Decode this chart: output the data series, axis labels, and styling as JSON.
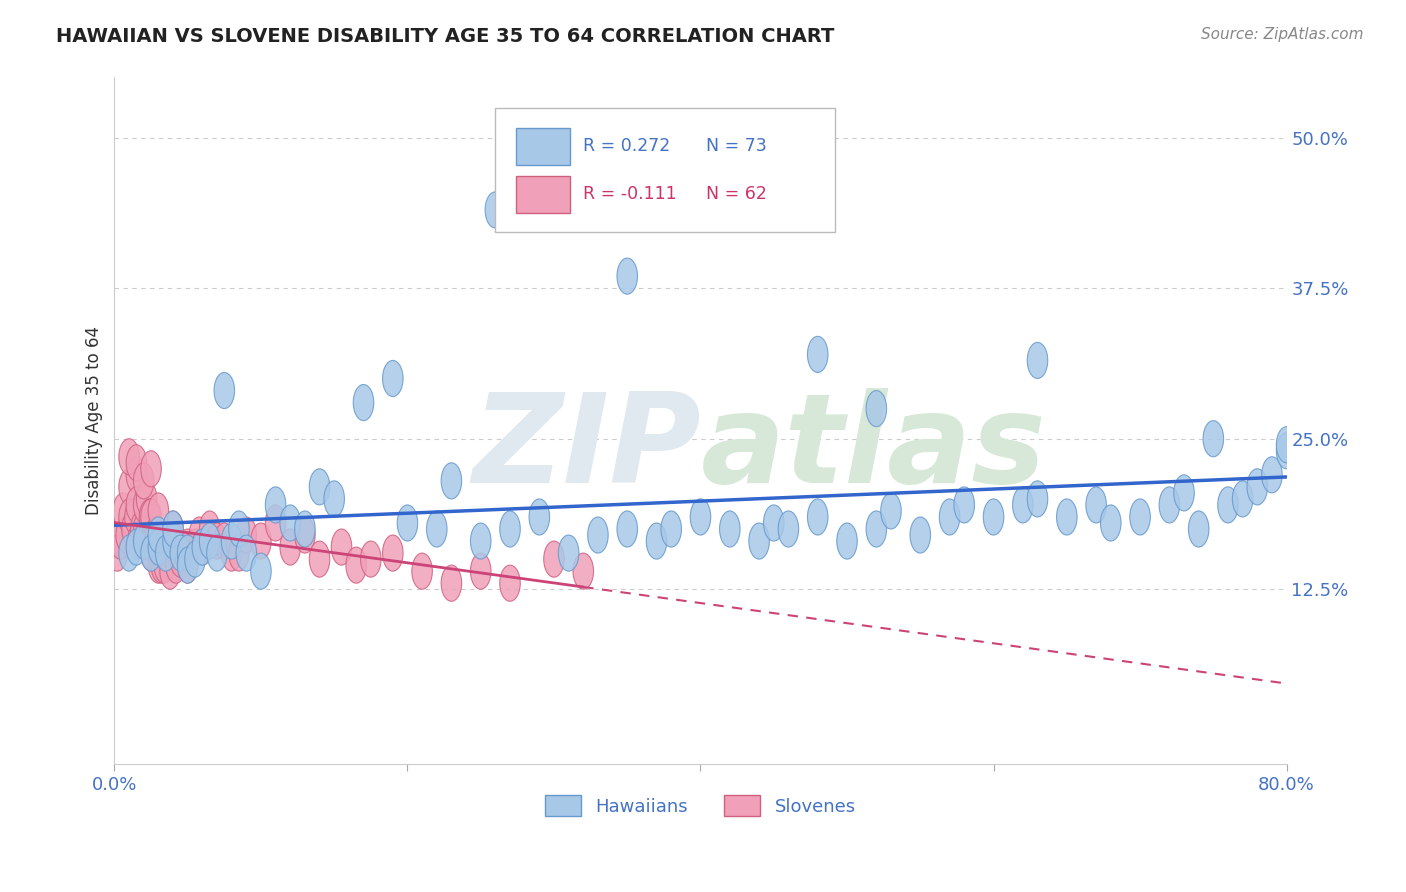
{
  "title": "HAWAIIAN VS SLOVENE DISABILITY AGE 35 TO 64 CORRELATION CHART",
  "source": "Source: ZipAtlas.com",
  "ylabel": "Disability Age 35 to 64",
  "xlim": [
    0.0,
    0.8
  ],
  "ylim": [
    -0.02,
    0.55
  ],
  "yticks": [
    0.125,
    0.25,
    0.375,
    0.5
  ],
  "ytick_labels": [
    "12.5%",
    "25.0%",
    "37.5%",
    "50.0%"
  ],
  "xticks": [
    0.0,
    0.2,
    0.4,
    0.6,
    0.8
  ],
  "xtick_labels": [
    "0.0%",
    "",
    "",
    "",
    "80.0%"
  ],
  "hawaiian_color": "#a8c8e8",
  "hawaiian_edge": "#6699cc",
  "slovene_color": "#f0a0b8",
  "slovene_edge": "#d06080",
  "trend_blue": "#3366cc",
  "trend_pink": "#cc4477",
  "R_hawaiian": 0.272,
  "N_hawaiian": 73,
  "R_slovene": -0.111,
  "N_slovene": 62,
  "hawaiian_x": [
    0.01,
    0.015,
    0.02,
    0.025,
    0.03,
    0.03,
    0.035,
    0.04,
    0.04,
    0.045,
    0.05,
    0.05,
    0.055,
    0.06,
    0.065,
    0.07,
    0.075,
    0.08,
    0.085,
    0.09,
    0.1,
    0.11,
    0.12,
    0.13,
    0.14,
    0.15,
    0.17,
    0.19,
    0.2,
    0.22,
    0.23,
    0.25,
    0.27,
    0.29,
    0.31,
    0.33,
    0.35,
    0.37,
    0.38,
    0.4,
    0.42,
    0.44,
    0.45,
    0.46,
    0.48,
    0.5,
    0.52,
    0.53,
    0.55,
    0.57,
    0.58,
    0.6,
    0.62,
    0.63,
    0.65,
    0.67,
    0.68,
    0.7,
    0.72,
    0.73,
    0.74,
    0.76,
    0.77,
    0.78,
    0.79,
    0.8,
    0.8,
    0.26,
    0.35,
    0.48,
    0.52,
    0.63,
    0.75
  ],
  "hawaiian_y": [
    0.155,
    0.16,
    0.165,
    0.155,
    0.16,
    0.17,
    0.155,
    0.165,
    0.175,
    0.155,
    0.155,
    0.145,
    0.15,
    0.16,
    0.165,
    0.155,
    0.29,
    0.165,
    0.175,
    0.155,
    0.14,
    0.195,
    0.18,
    0.175,
    0.21,
    0.2,
    0.28,
    0.3,
    0.18,
    0.175,
    0.215,
    0.165,
    0.175,
    0.185,
    0.155,
    0.17,
    0.175,
    0.165,
    0.175,
    0.185,
    0.175,
    0.165,
    0.18,
    0.175,
    0.185,
    0.165,
    0.175,
    0.19,
    0.17,
    0.185,
    0.195,
    0.185,
    0.195,
    0.2,
    0.185,
    0.195,
    0.18,
    0.185,
    0.195,
    0.205,
    0.175,
    0.195,
    0.2,
    0.21,
    0.22,
    0.24,
    0.245,
    0.44,
    0.385,
    0.32,
    0.275,
    0.315,
    0.25
  ],
  "slovene_x": [
    0.002,
    0.004,
    0.006,
    0.008,
    0.01,
    0.01,
    0.012,
    0.014,
    0.015,
    0.015,
    0.016,
    0.018,
    0.02,
    0.02,
    0.022,
    0.022,
    0.024,
    0.025,
    0.025,
    0.028,
    0.03,
    0.03,
    0.032,
    0.034,
    0.035,
    0.038,
    0.04,
    0.04,
    0.042,
    0.045,
    0.048,
    0.05,
    0.05,
    0.055,
    0.058,
    0.06,
    0.065,
    0.07,
    0.075,
    0.08,
    0.085,
    0.09,
    0.1,
    0.11,
    0.12,
    0.13,
    0.14,
    0.155,
    0.165,
    0.175,
    0.19,
    0.21,
    0.23,
    0.25,
    0.27,
    0.3,
    0.32,
    0.01,
    0.015,
    0.02,
    0.025,
    0.03
  ],
  "slovene_y": [
    0.155,
    0.165,
    0.19,
    0.17,
    0.21,
    0.185,
    0.175,
    0.185,
    0.22,
    0.195,
    0.165,
    0.175,
    0.175,
    0.195,
    0.165,
    0.2,
    0.185,
    0.185,
    0.155,
    0.17,
    0.145,
    0.165,
    0.145,
    0.145,
    0.155,
    0.14,
    0.16,
    0.175,
    0.145,
    0.15,
    0.155,
    0.16,
    0.145,
    0.16,
    0.17,
    0.16,
    0.175,
    0.165,
    0.165,
    0.155,
    0.155,
    0.17,
    0.165,
    0.18,
    0.16,
    0.17,
    0.15,
    0.16,
    0.145,
    0.15,
    0.155,
    0.14,
    0.13,
    0.14,
    0.13,
    0.15,
    0.14,
    0.235,
    0.23,
    0.215,
    0.225,
    0.19
  ],
  "background_color": "#ffffff",
  "grid_color": "#cccccc"
}
